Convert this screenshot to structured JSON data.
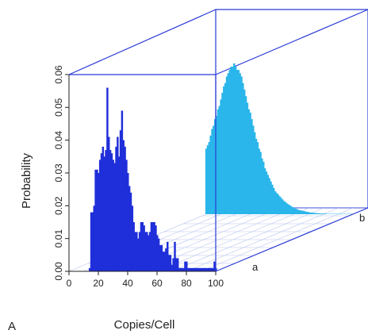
{
  "chart_data": {
    "type": "bar",
    "view": "3d-perspective",
    "panel_label": "A",
    "xlabel": "Copies/Cell",
    "ylabel": "Probability",
    "x_ticks": [
      "0",
      "20",
      "40",
      "60",
      "80",
      "100"
    ],
    "y_ticks": [
      "0.00",
      "0.01",
      "0.02",
      "0.03",
      "0.04",
      "0.05",
      "0.06"
    ],
    "xlim": [
      0,
      100
    ],
    "ylim": [
      0,
      0.06
    ],
    "depth_labels": [
      "a",
      "b"
    ],
    "grid": "floor",
    "series": [
      {
        "depth_label": "a",
        "color": "#1f2fd9",
        "x": [
          14,
          15,
          16,
          17,
          18,
          19,
          20,
          21,
          22,
          23,
          24,
          25,
          26,
          27,
          28,
          29,
          30,
          31,
          32,
          33,
          34,
          35,
          36,
          37,
          38,
          39,
          40,
          41,
          42,
          43,
          44,
          45,
          46,
          47,
          48,
          49,
          50,
          51,
          52,
          53,
          54,
          55,
          56,
          57,
          58,
          59,
          60,
          61,
          62,
          63,
          64,
          65,
          66,
          67,
          68,
          69,
          70,
          71,
          72,
          73,
          74,
          75,
          76,
          77,
          78,
          79,
          80,
          81,
          82,
          83,
          84,
          85,
          86,
          87,
          88,
          89,
          90,
          91,
          92,
          93,
          94,
          95,
          96,
          97,
          98,
          99,
          100
        ],
        "values": [
          0.001,
          0.018,
          0.018,
          0.02,
          0.031,
          0.031,
          0.03,
          0.034,
          0.036,
          0.038,
          0.035,
          0.037,
          0.056,
          0.041,
          0.037,
          0.036,
          0.034,
          0.033,
          0.038,
          0.041,
          0.035,
          0.043,
          0.049,
          0.04,
          0.038,
          0.034,
          0.03,
          0.026,
          0.024,
          0.02,
          0.015,
          0.012,
          0.012,
          0.01,
          0.012,
          0.015,
          0.015,
          0.014,
          0.012,
          0.012,
          0.011,
          0.012,
          0.015,
          0.015,
          0.015,
          0.014,
          0.011,
          0.01,
          0.008,
          0.008,
          0.006,
          0.006,
          0.007,
          0.009,
          0.005,
          0.005,
          0.002,
          0.004,
          0.009,
          0.004,
          0.004,
          0.001,
          0.001,
          0.001,
          0.001,
          0.003,
          0.003,
          0.001,
          0.001,
          0.001,
          0.001,
          0.001,
          0.001,
          0.001,
          0.001,
          0.001,
          0.001,
          0.001,
          0.001,
          0.001,
          0.001,
          0.001,
          0.001,
          0.001,
          0.001,
          0.003,
          0.001
        ]
      },
      {
        "depth_label": "b",
        "color": "#2ab6ea",
        "x": [
          0,
          1,
          2,
          3,
          4,
          5,
          6,
          7,
          8,
          9,
          10,
          11,
          12,
          13,
          14,
          15,
          16,
          17,
          18,
          19,
          20,
          21,
          22,
          23,
          24,
          25,
          26,
          27,
          28,
          29,
          30,
          31,
          32,
          33,
          34,
          35,
          36,
          37,
          38,
          39,
          40,
          41,
          42,
          43,
          44,
          45,
          46,
          47,
          48,
          49,
          50,
          51,
          52,
          53,
          54,
          55,
          56,
          57,
          58,
          59,
          60,
          61,
          62,
          63,
          64,
          65,
          66,
          67,
          68,
          69,
          70,
          71,
          72,
          73,
          74,
          75,
          76,
          77,
          78,
          79,
          80,
          81,
          82,
          83,
          84,
          85,
          86,
          87,
          88,
          89,
          90,
          91,
          92,
          93,
          94,
          95,
          96,
          97,
          98,
          99,
          100
        ],
        "values": [
          0.02,
          0.021,
          0.022,
          0.024,
          0.026,
          0.027,
          0.029,
          0.03,
          0.032,
          0.033,
          0.035,
          0.037,
          0.039,
          0.04,
          0.042,
          0.043,
          0.044,
          0.045,
          0.045,
          0.046,
          0.045,
          0.044,
          0.044,
          0.043,
          0.042,
          0.04,
          0.038,
          0.036,
          0.034,
          0.032,
          0.031,
          0.029,
          0.027,
          0.025,
          0.023,
          0.022,
          0.02,
          0.019,
          0.017,
          0.016,
          0.014,
          0.013,
          0.012,
          0.011,
          0.01,
          0.009,
          0.008,
          0.007,
          0.0065,
          0.006,
          0.0055,
          0.005,
          0.0045,
          0.004,
          0.0037,
          0.0033,
          0.003,
          0.0027,
          0.0024,
          0.0021,
          0.0019,
          0.0017,
          0.0015,
          0.0013,
          0.0012,
          0.0011,
          0.001,
          0.0009,
          0.0008,
          0.0007,
          0.0006,
          0.0005,
          0.0005,
          0.0004,
          0.0004,
          0.0003,
          0.0003,
          0.0003,
          0.0002,
          0.0002,
          0.0002,
          0.0002,
          0.0001,
          0.0001,
          0.0001,
          0.0001,
          0.0001,
          0.0001,
          0.0001,
          0.0001,
          0.0001,
          0.0001,
          0.0001,
          0.0001,
          0.0001,
          0.0001,
          0.0001,
          0.0001,
          0.0001,
          0.0001,
          0.0001
        ]
      }
    ]
  }
}
